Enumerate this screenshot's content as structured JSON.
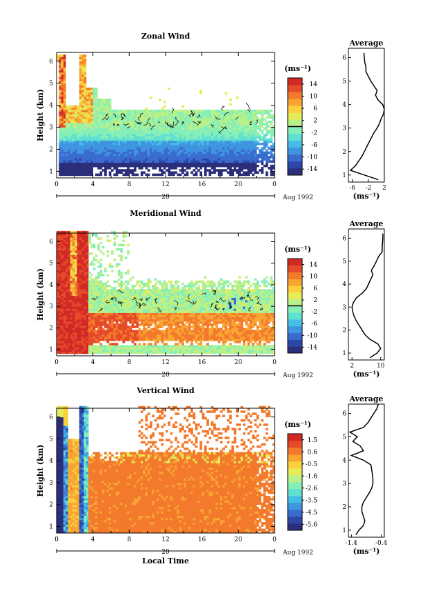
{
  "chart_data": [
    {
      "type": "heatmap",
      "title": "Zonal Wind",
      "ylabel": "Height (km)",
      "colorbar_label": "(ms⁻¹)",
      "colorbar_ticks": [
        "14",
        "10",
        "6",
        "2",
        "-2",
        "-6",
        "-10",
        "-14"
      ],
      "colorbar_range": [
        -14,
        14
      ],
      "ylim": [
        0.7,
        6.4
      ],
      "yticks": [
        "1",
        "2",
        "3",
        "4",
        "5",
        "6"
      ],
      "xticks": [
        "0",
        "4",
        "8",
        "12",
        "16",
        "20",
        "0"
      ],
      "date_label": "20",
      "date_suffix": "Aug 1992",
      "zero_line_level": 0,
      "average": {
        "title": "Average",
        "xlabel": "(ms⁻¹)",
        "xlim": [
          -7,
          2
        ],
        "xticks": [
          "-6",
          "-2",
          "2"
        ],
        "height": [
          0.8,
          1.0,
          1.2,
          1.4,
          1.6,
          1.8,
          2.0,
          2.2,
          2.4,
          2.6,
          2.8,
          3.0,
          3.2,
          3.4,
          3.6,
          3.8,
          4.0,
          4.2,
          4.4,
          4.6,
          4.8,
          5.0,
          5.2,
          5.4,
          5.6,
          5.8,
          6.0,
          6.2
        ],
        "value": [
          0.5,
          -3.0,
          -6.5,
          -5.2,
          -4.4,
          -3.6,
          -3.0,
          -2.4,
          -1.8,
          -1.2,
          -0.6,
          0.2,
          0.8,
          1.2,
          1.8,
          2.0,
          1.6,
          0.4,
          -0.2,
          0.2,
          -0.6,
          -1.4,
          -2.0,
          -2.6,
          -2.6,
          -2.9,
          -3.0,
          -3.1
        ]
      }
    },
    {
      "type": "heatmap",
      "title": "Meridional Wind",
      "ylabel": "Height (km)",
      "colorbar_label": "(ms⁻¹)",
      "colorbar_ticks": [
        "14",
        "10",
        "6",
        "2",
        "-2",
        "-6",
        "-10",
        "-14"
      ],
      "colorbar_range": [
        -14,
        14
      ],
      "ylim": [
        0.7,
        6.4
      ],
      "yticks": [
        "1",
        "2",
        "3",
        "4",
        "5",
        "6"
      ],
      "xticks": [
        "0",
        "4",
        "8",
        "12",
        "16",
        "20",
        "0"
      ],
      "date_label": "20",
      "date_suffix": "Aug 1992",
      "zero_line_level": 0,
      "average": {
        "title": "Average",
        "xlabel": "(ms⁻¹)",
        "xlim": [
          1,
          11
        ],
        "xticks": [
          "2",
          "10"
        ],
        "height": [
          0.8,
          1.0,
          1.2,
          1.4,
          1.6,
          1.8,
          2.0,
          2.2,
          2.4,
          2.6,
          2.8,
          3.0,
          3.2,
          3.4,
          3.6,
          3.8,
          4.0,
          4.2,
          4.4,
          4.6,
          4.8,
          5.0,
          5.2,
          5.4,
          5.6,
          5.8,
          6.0,
          6.2
        ],
        "value": [
          7.0,
          9.0,
          10.0,
          9.2,
          7.0,
          5.6,
          4.8,
          4.0,
          3.2,
          2.6,
          2.2,
          2.0,
          2.4,
          3.2,
          4.8,
          6.0,
          6.6,
          7.2,
          7.8,
          7.4,
          8.2,
          8.8,
          9.4,
          10.4,
          10.4,
          10.5,
          10.6,
          10.6
        ]
      }
    },
    {
      "type": "heatmap",
      "title": "Vertical Wind",
      "ylabel": "Height (km)",
      "xlabel": "Local Time",
      "colorbar_label": "(ms⁻¹)",
      "colorbar_ticks": [
        "1.5",
        "0.6",
        "-0.5",
        "-1.6",
        "-2.6",
        "-3.5",
        "-4.5",
        "-5.6"
      ],
      "colorbar_range": [
        -6,
        2
      ],
      "ylim": [
        0.7,
        6.4
      ],
      "yticks": [
        "1",
        "2",
        "3",
        "4",
        "5",
        "6"
      ],
      "xticks": [
        "0",
        "4",
        "8",
        "12",
        "16",
        "20",
        "0"
      ],
      "date_label": "20",
      "date_suffix": "Aug 1992",
      "average": {
        "title": "Average",
        "xlabel": "(ms⁻¹)",
        "xlim": [
          -1.5,
          -0.3
        ],
        "xticks": [
          "-1.4",
          "-0.4"
        ],
        "height": [
          0.8,
          1.0,
          1.2,
          1.4,
          1.6,
          1.8,
          2.0,
          2.2,
          2.4,
          2.6,
          2.8,
          3.0,
          3.2,
          3.4,
          3.6,
          3.8,
          4.0,
          4.2,
          4.4,
          4.6,
          4.8,
          5.0,
          5.2,
          5.4,
          5.6,
          5.8,
          6.0,
          6.2,
          6.4
        ],
        "value": [
          -1.25,
          -1.15,
          -1.0,
          -0.95,
          -1.0,
          -1.05,
          -1.05,
          -1.0,
          -0.9,
          -0.8,
          -0.72,
          -0.68,
          -0.68,
          -0.7,
          -0.72,
          -0.75,
          -1.0,
          -1.4,
          -1.0,
          -1.1,
          -1.35,
          -1.2,
          -1.45,
          -1.0,
          -0.85,
          -0.75,
          -0.65,
          -0.55,
          -0.5
        ]
      }
    }
  ]
}
